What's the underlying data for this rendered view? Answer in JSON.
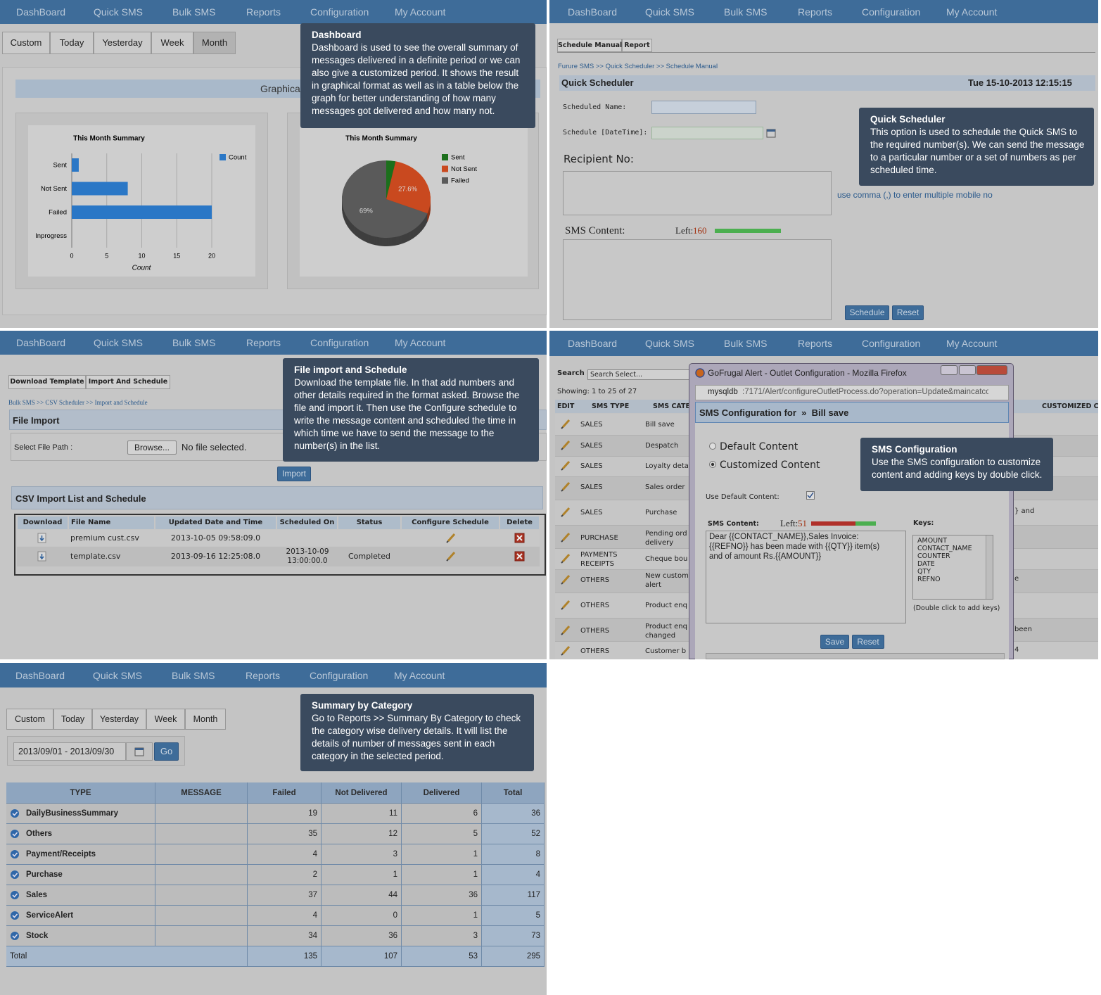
{
  "nav": [
    "DashBoard",
    "Quick SMS",
    "Bulk SMS",
    "Reports",
    "Configuration",
    "My Account"
  ],
  "dashboard": {
    "tabs": [
      "Custom",
      "Today",
      "Yesterday",
      "Week",
      "Month"
    ],
    "section_title": "Graphical",
    "tooltip": {
      "title": "Dashboard",
      "lines": [
        "Dashboard is used to see the overall summary of",
        "messages delivered in a definite period or we can",
        "also give a customized period. It shows the result",
        "in graphical format as well as in a table below the",
        "graph for better understanding of how many",
        "messages got delivered and how many not."
      ]
    }
  },
  "chart_data": [
    {
      "type": "bar",
      "orientation": "horizontal",
      "title": "This Month Summary",
      "categories": [
        "Sent",
        "Not Sent",
        "Failed",
        "Inprogress"
      ],
      "series": [
        {
          "name": "Count",
          "color": "#2a77c6",
          "values": [
            1,
            8,
            20,
            0
          ]
        }
      ],
      "xlabel": "Count",
      "xlim": [
        0,
        20
      ],
      "xticks": [
        0,
        5,
        10,
        15,
        20
      ],
      "grid": true,
      "legend": "upper right"
    },
    {
      "type": "pie",
      "title": "This Month Summary",
      "categories": [
        "Sent",
        "Not Sent",
        "Failed"
      ],
      "values": [
        3.4,
        27.6,
        69
      ],
      "value_labels": [
        null,
        "27.6%",
        "69%"
      ],
      "colors": [
        "#1c6f1c",
        "#c9491f",
        "#5a5a5a"
      ],
      "legend": "right"
    }
  ],
  "quick_scheduler": {
    "tabs": [
      "Schedule Manual",
      "Report"
    ],
    "breadcrumb": "Furure SMS >> Quick Scheduler >> Schedule Manual",
    "header": "Quick Scheduler",
    "datetime": "Tue 15-10-2013 12:15:15",
    "name_label": "Scheduled Name:",
    "datetime_label": "Schedule [DateTime]:",
    "recipient_label": "Recipient No:",
    "recipient_hint": "use comma (,) to enter multiple mobile no",
    "content_label": "SMS Content:",
    "left_label": "Left:",
    "left_count": 160,
    "buttons": [
      "Schedule",
      "Reset"
    ],
    "tooltip": {
      "title": "Quick Scheduler",
      "lines": [
        "This option is used to schedule the Quick SMS to",
        "the required number(s). We can send the message",
        "to a particular number or a set of numbers as per",
        "scheduled time."
      ]
    }
  },
  "csv_import": {
    "tabs": [
      "Download Template",
      "Import And Schedule"
    ],
    "breadcrumb": "Bulk SMS >> CSV Scheduler >> Import and Schedule",
    "header": "File Import",
    "file_label": "Select File Path :",
    "browse": "Browse...",
    "no_file": "No file selected.",
    "import": "Import",
    "list_header": "CSV Import List and Schedule",
    "columns": [
      "Download",
      "File Name",
      "Updated Date and Time",
      "Scheduled On",
      "Status",
      "Configure Schedule",
      "Delete"
    ],
    "rows": [
      {
        "file": "premium cust.csv",
        "updated": "2013-10-05 09:58:09.0"
      },
      {
        "file": "template.csv",
        "updated": "2013-09-16 12:25:08.0",
        "scheduled": "2013-10-09 13:00:00.0",
        "status": "Completed"
      }
    ],
    "tooltip": {
      "title": "File import and Schedule",
      "lines": [
        "Download the template file. In that add numbers and",
        "other details required in the format asked. Browse the",
        "file and import it. Then use the Configure schedule to",
        "write the message content and scheduled the time in",
        "which time we have to send the message to the",
        "number(s) in the list."
      ]
    }
  },
  "sms_config": {
    "search_label": "Search",
    "search_placeholder": "Search Select...",
    "showing": "Showing: 1 to 25 of 27",
    "columns": [
      "EDIT",
      "SMS TYPE",
      "SMS CATE",
      "CUSTOMIZED C"
    ],
    "rows": [
      {
        "type": [
          "SALES"
        ],
        "category": [
          "Bill save"
        ]
      },
      {
        "type": [
          "SALES"
        ],
        "category": [
          "Despatch"
        ]
      },
      {
        "type": [
          "SALES"
        ],
        "category": [
          "Loyalty deta"
        ]
      },
      {
        "type": [
          "SALES"
        ],
        "category": [
          "Sales order"
        ]
      },
      {
        "type": [
          "SALES"
        ],
        "category": [
          "Purchase"
        ],
        "customized": "} and"
      },
      {
        "type": [
          "PURCHASE"
        ],
        "category": [
          "Pending ord",
          "delivery"
        ]
      },
      {
        "type": [
          "PAYMENTS",
          "RECEIPTS"
        ],
        "category": [
          "Cheque bou"
        ]
      },
      {
        "type": [
          "OTHERS"
        ],
        "category": [
          "New custom",
          "alert"
        ],
        "customized": "e"
      },
      {
        "type": [
          "OTHERS"
        ],
        "category": [
          "Product enq"
        ]
      },
      {
        "type": [
          "OTHERS"
        ],
        "category": [
          "Product enq",
          "changed"
        ],
        "customized": "been"
      },
      {
        "type": [
          "OTHERS"
        ],
        "category": [
          "Customer b"
        ],
        "customized": "4"
      }
    ],
    "popup": {
      "window_title": "GoFrugal Alert - Outlet Configuration - Mozilla Firefox",
      "url_host": "mysqldb",
      "url_rest": ":7171/Alert/configureOutletProcess.do?operation=Update&maincatcod",
      "header": "SMS Configuration for  »  Bill save",
      "options": [
        "Default Content",
        "Customized Content"
      ],
      "use_default_label": "Use Default Content:",
      "content_label": "SMS Content:",
      "left_label": "Left:",
      "left_count": 51,
      "content_lines": [
        "Dear {{CONTACT_NAME}},Sales Invoice:",
        "{{REFNO}}  has been made with {{QTY}} item(s)",
        "and of amount Rs.{{AMOUNT}}"
      ],
      "keys_label": "Keys:",
      "keys": [
        "AMOUNT",
        "CONTACT_NAME",
        "COUNTER",
        "DATE",
        "QTY",
        "REFNO"
      ],
      "keys_hint": "(Double click to add keys)",
      "buttons": [
        "Save",
        "Reset"
      ]
    },
    "tooltip": {
      "title": "SMS Configuration",
      "lines": [
        "Use the SMS configuration to customize",
        "content and adding keys by double click."
      ]
    }
  },
  "summary": {
    "tabs": [
      "Custom",
      "Today",
      "Yesterday",
      "Week",
      "Month"
    ],
    "date_range": "2013/09/01 - 2013/09/30",
    "go": "Go",
    "columns": [
      "TYPE",
      "MESSAGE",
      "Failed",
      "Not Delivered",
      "Delivered",
      "Total"
    ],
    "rows": [
      [
        "DailyBusinessSummary",
        19,
        11,
        6,
        36
      ],
      [
        "Others",
        35,
        12,
        5,
        52
      ],
      [
        "Payment/Receipts",
        4,
        3,
        1,
        8
      ],
      [
        "Purchase",
        2,
        1,
        1,
        4
      ],
      [
        "Sales",
        37,
        44,
        36,
        117
      ],
      [
        "ServiceAlert",
        4,
        0,
        1,
        5
      ],
      [
        "Stock",
        34,
        36,
        3,
        73
      ]
    ],
    "total": {
      "label": "Total",
      "values": [
        135,
        107,
        53,
        295
      ]
    },
    "tooltip": {
      "title": "Summary by Category",
      "lines": [
        "Go to Reports >> Summary By Category to check",
        "the category wise delivery details. It will list the",
        "details of number of messages sent in each",
        "category in the selected period."
      ]
    }
  }
}
